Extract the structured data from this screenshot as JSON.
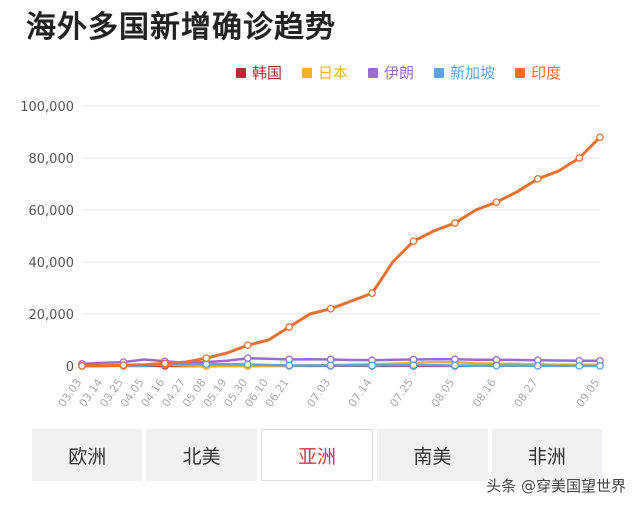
{
  "title": "海外多国新增确诊趋势",
  "watermark": "头条 @穿美国望世界",
  "tabs": [
    {
      "label": "欧洲",
      "active": false
    },
    {
      "label": "北美",
      "active": false
    },
    {
      "label": "亚洲",
      "active": true
    },
    {
      "label": "南美",
      "active": false
    },
    {
      "label": "非洲",
      "active": false
    }
  ],
  "colors": {
    "active_tab": "#d33b3b"
  },
  "chart_data": {
    "type": "line",
    "title": "海外多国新增确诊趋势",
    "legend_position": "top-right",
    "grid": "horizontal",
    "ylim": [
      0,
      100000
    ],
    "yticks": [
      "0",
      "20,000",
      "40,000",
      "60,000",
      "80,000",
      "100,000"
    ],
    "ytick_values": [
      0,
      20000,
      40000,
      60000,
      80000,
      100000
    ],
    "xticks": [
      "03.03",
      "03.14",
      "03.25",
      "04.05",
      "04.16",
      "04.27",
      "05.08",
      "05.19",
      "05.30",
      "06.10",
      "06.21",
      "07.03",
      "07.14",
      "07.25",
      "08.05",
      "08.16",
      "08.27",
      "09.05"
    ],
    "x": [
      "03.03",
      "03.14",
      "03.25",
      "04.05",
      "04.16",
      "04.27",
      "05.08",
      "05.19",
      "05.30",
      "06.10",
      "06.21",
      "06.27",
      "07.03",
      "07.08",
      "07.14",
      "07.20",
      "07.25",
      "07.30",
      "08.05",
      "08.10",
      "08.16",
      "08.21",
      "08.27",
      "08.31",
      "09.03",
      "09.05"
    ],
    "series": [
      {
        "name": "韩国",
        "color": "#b52a35",
        "values": [
          600,
          100,
          80,
          50,
          30,
          10,
          15,
          30,
          40,
          40,
          50,
          50,
          60,
          60,
          40,
          40,
          60,
          40,
          30,
          100,
          300,
          300,
          300,
          250,
          200,
          200
        ]
      },
      {
        "name": "日本",
        "color": "#f2b21b",
        "values": [
          20,
          50,
          100,
          500,
          500,
          200,
          50,
          30,
          50,
          50,
          80,
          300,
          300,
          500,
          700,
          900,
          1200,
          1500,
          1500,
          1000,
          900,
          800,
          600,
          500,
          500,
          500
        ]
      },
      {
        "name": "伊朗",
        "color": "#9b6bd1",
        "values": [
          800,
          1200,
          1500,
          2500,
          1800,
          1200,
          1500,
          2000,
          3000,
          2800,
          2500,
          2600,
          2500,
          2300,
          2200,
          2400,
          2500,
          2600,
          2600,
          2400,
          2400,
          2300,
          2200,
          2100,
          2000,
          2000
        ]
      },
      {
        "name": "新加坡",
        "color": "#5aa4e8",
        "values": [
          10,
          20,
          50,
          100,
          600,
          700,
          700,
          700,
          600,
          400,
          200,
          200,
          200,
          300,
          200,
          300,
          300,
          300,
          200,
          100,
          80,
          80,
          60,
          50,
          40,
          40
        ]
      },
      {
        "name": "印度",
        "color": "#e4722e",
        "values": [
          50,
          100,
          300,
          500,
          1000,
          1500,
          3000,
          5000,
          8000,
          10000,
          15000,
          20000,
          22000,
          25000,
          28000,
          40000,
          48000,
          52000,
          55000,
          60000,
          63000,
          67000,
          72000,
          75000,
          80000,
          88000
        ]
      }
    ]
  }
}
